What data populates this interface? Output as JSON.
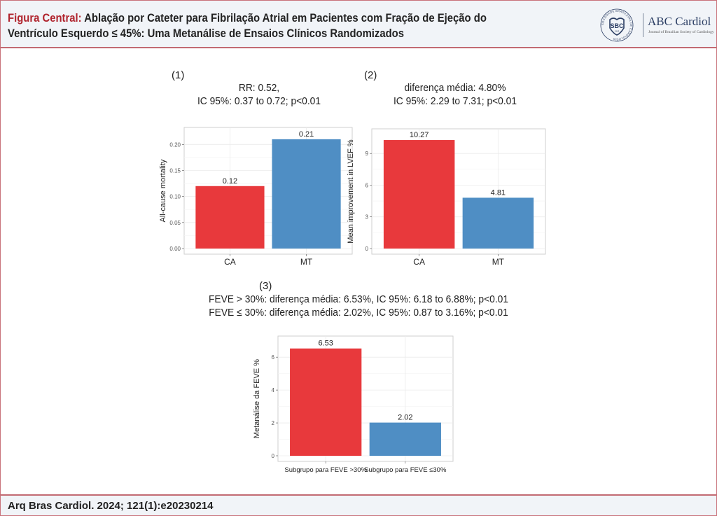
{
  "header": {
    "title_prefix": "Figura Central:",
    "title_line1": "Ablação por Cateter para Fibrilação Atrial em Pacientes com Fração de Ejeção do",
    "title_line2": "Ventrículo Esquerdo ≤ 45%: Uma Metanálise de Ensaios Clínicos Randomizados",
    "logo": {
      "seal_text": "SBC",
      "seal_year": "1943",
      "seal_ring_text": "SOCIEDADE BRASILEIRA DE CARDIOLOGIA",
      "name": "ABC Cardiol",
      "subtitle": "Journal of Brazilian Society of Cardiology"
    }
  },
  "panels": [
    {
      "label": "(1)",
      "stat_line1": "RR: 0.52,",
      "stat_line2": "IC 95%: 0.37 to 0.72; p<0.01"
    },
    {
      "label": "(2)",
      "stat_line1": "diferença média: 4.80%",
      "stat_line2": "IC 95%: 2.29 to 7.31; p<0.01"
    },
    {
      "label": "(3)",
      "stat_line1": "FEVE > 30%: diferença média: 6.53%, IC 95%: 6.18 to 6.88%; p<0.01",
      "stat_line2": "FEVE ≤ 30%: diferença média: 2.02%, IC 95%: 0.87 to 3.16%; p<0.01"
    }
  ],
  "colors": {
    "ca_bar": "#e8393c",
    "mt_bar": "#4f8ec4",
    "accent": "#b0242e"
  },
  "chart_data": [
    {
      "type": "bar",
      "title": "",
      "xlabel": "",
      "ylabel": "All-cause mortality",
      "categories": [
        "CA",
        "MT"
      ],
      "values": [
        0.12,
        0.21
      ],
      "value_labels": [
        "0.12",
        "0.21"
      ],
      "yticks": [
        0.0,
        0.05,
        0.1,
        0.15,
        0.2
      ],
      "ytick_labels": [
        "0.00",
        "0.05",
        "0.10",
        "0.15",
        "0.20"
      ],
      "ylim": [
        0,
        0.23
      ],
      "grid": true
    },
    {
      "type": "bar",
      "title": "",
      "xlabel": "",
      "ylabel": "Mean improvement in LVEF %",
      "categories": [
        "CA",
        "MT"
      ],
      "values": [
        10.27,
        4.81
      ],
      "value_labels": [
        "10.27",
        "4.81"
      ],
      "yticks": [
        0,
        3,
        6,
        9
      ],
      "ytick_labels": [
        "0",
        "3",
        "6",
        "9"
      ],
      "ylim": [
        0,
        11.2
      ],
      "grid": true
    },
    {
      "type": "bar",
      "title": "",
      "xlabel": "",
      "ylabel": "Metanálise da FEVE %",
      "categories": [
        "Subgrupo para FEVE >30%",
        "Subgrupo para FEVE ≤30%"
      ],
      "values": [
        6.53,
        2.02
      ],
      "value_labels": [
        "6.53",
        "2.02"
      ],
      "yticks": [
        0,
        2,
        4,
        6
      ],
      "ytick_labels": [
        "0",
        "2",
        "4",
        "6"
      ],
      "ylim": [
        0,
        7.2
      ],
      "grid": true
    }
  ],
  "footer": {
    "citation": "Arq Bras Cardiol. 2024; 121(1):e20230214"
  }
}
